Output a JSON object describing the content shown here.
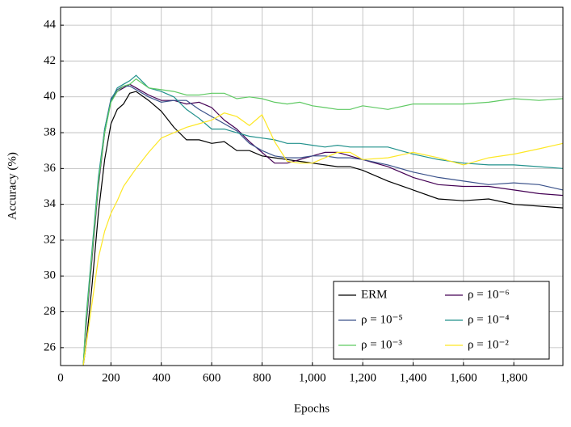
{
  "chart_data": {
    "type": "line",
    "xlabel": "Epochs",
    "ylabel": "Accuracy (%)",
    "x": [
      90,
      100,
      125,
      150,
      175,
      200,
      225,
      250,
      275,
      300,
      350,
      400,
      450,
      500,
      550,
      600,
      650,
      700,
      750,
      800,
      850,
      900,
      950,
      1000,
      1050,
      1100,
      1150,
      1200,
      1300,
      1400,
      1500,
      1600,
      1700,
      1800,
      1900,
      1995
    ],
    "series": [
      {
        "name": "ERM",
        "color": "#000000",
        "values": [
          25,
          26,
          29.5,
          33.5,
          36.5,
          38.5,
          39.3,
          39.6,
          40.2,
          40.3,
          39.8,
          39.2,
          38.3,
          37.6,
          37.6,
          37.4,
          37.5,
          37,
          37,
          36.7,
          36.6,
          36.5,
          36.4,
          36.3,
          36.2,
          36.1,
          36.1,
          35.9,
          35.3,
          34.8,
          34.3,
          34.2,
          34.3,
          34,
          33.9,
          33.8
        ]
      },
      {
        "name": "ρ = 10⁻⁶",
        "color": "#440154",
        "values": [
          25,
          27,
          31,
          35,
          38,
          39.8,
          40.3,
          40.5,
          40.7,
          40.5,
          40.1,
          39.8,
          39.8,
          39.6,
          39.7,
          39.4,
          38.7,
          38.2,
          37.5,
          36.9,
          36.3,
          36.3,
          36.5,
          36.7,
          36.9,
          36.9,
          36.7,
          36.5,
          36.1,
          35.5,
          35.1,
          35,
          35,
          34.8,
          34.6,
          34.5
        ]
      },
      {
        "name": "ρ = 10⁻⁵",
        "color": "#3b528b",
        "values": [
          25,
          27.2,
          31.3,
          35.3,
          38.2,
          39.9,
          40.4,
          40.6,
          40.6,
          40.4,
          40,
          39.7,
          39.8,
          39.8,
          39.3,
          38.9,
          38.5,
          38.1,
          37.4,
          37,
          36.7,
          36.6,
          36.6,
          36.7,
          36.7,
          36.6,
          36.6,
          36.5,
          36.2,
          35.8,
          35.5,
          35.3,
          35.1,
          35.2,
          35.1,
          34.8
        ]
      },
      {
        "name": "ρ = 10⁻⁴",
        "color": "#21918c",
        "values": [
          25,
          27.5,
          31.5,
          35.5,
          38.2,
          39.8,
          40.5,
          40.7,
          40.9,
          41.2,
          40.5,
          40.3,
          40,
          39.3,
          38.8,
          38.2,
          38.2,
          38,
          37.8,
          37.7,
          37.6,
          37.4,
          37.4,
          37.3,
          37.2,
          37.3,
          37.2,
          37.2,
          37.2,
          36.8,
          36.5,
          36.3,
          36.2,
          36.2,
          36.1,
          36
        ]
      },
      {
        "name": "ρ = 10⁻³",
        "color": "#5ec962",
        "values": [
          25,
          27.3,
          31.2,
          35.2,
          38,
          39.7,
          40.3,
          40.6,
          40.7,
          41,
          40.5,
          40.4,
          40.3,
          40.1,
          40.1,
          40.2,
          40.2,
          39.9,
          40,
          39.9,
          39.7,
          39.6,
          39.7,
          39.5,
          39.4,
          39.3,
          39.3,
          39.5,
          39.3,
          39.6,
          39.6,
          39.6,
          39.7,
          39.9,
          39.8,
          39.9
        ]
      },
      {
        "name": "ρ = 10⁻²",
        "color": "#fde725",
        "values": [
          25,
          26,
          28.5,
          31,
          32.5,
          33.5,
          34.2,
          35,
          35.5,
          36,
          36.9,
          37.7,
          38,
          38.3,
          38.5,
          38.7,
          39.1,
          38.9,
          38.4,
          39,
          37.5,
          36.4,
          36.3,
          36.3,
          36.6,
          36.9,
          36.9,
          36.5,
          36.6,
          36.9,
          36.6,
          36.2,
          36.6,
          36.8,
          37.1,
          37.4
        ]
      }
    ],
    "xlim": [
      0,
      1995
    ],
    "ylim": [
      25,
      45
    ],
    "xticks": [
      0,
      200,
      400,
      600,
      800,
      {
        "value": 1000,
        "label": "1,000"
      },
      {
        "value": 1200,
        "label": "1,200"
      },
      {
        "value": 1400,
        "label": "1,400"
      },
      {
        "value": 1600,
        "label": "1,600"
      },
      {
        "value": 1800,
        "label": "1,800"
      }
    ],
    "yticks": [
      26,
      28,
      30,
      32,
      34,
      36,
      38,
      40,
      42,
      44
    ],
    "grid": true,
    "legend": "lower right"
  }
}
